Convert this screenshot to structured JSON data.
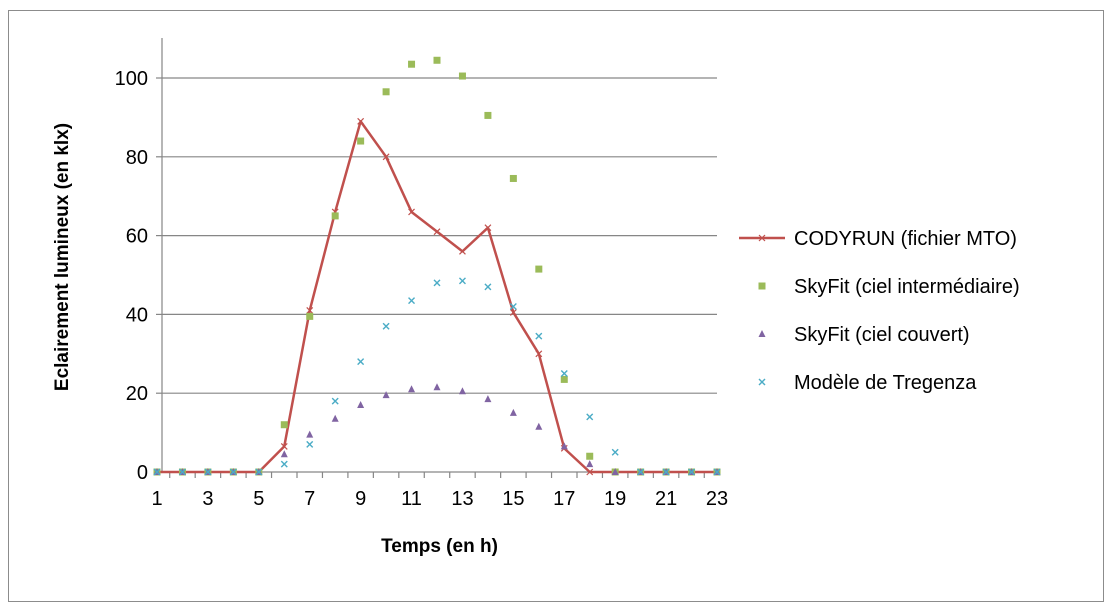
{
  "chart_data": {
    "type": "line",
    "xlabel": "Temps (en h)",
    "ylabel": "Eclairement lumineux (en klx)",
    "xlim": [
      1,
      23
    ],
    "ylim": [
      0,
      110
    ],
    "x_tick_labels": [
      "1",
      "3",
      "5",
      "7",
      "9",
      "11",
      "13",
      "15",
      "17",
      "19",
      "21",
      "23"
    ],
    "y_tick_labels": [
      "0",
      "20",
      "40",
      "60",
      "80",
      "100"
    ],
    "y_ticks": [
      0,
      20,
      40,
      60,
      80,
      100
    ],
    "grid": "horizontal",
    "legend_position": "right",
    "x": [
      1,
      2,
      3,
      4,
      5,
      6,
      7,
      8,
      9,
      10,
      11,
      12,
      13,
      14,
      15,
      16,
      17,
      18,
      19,
      20,
      21,
      22,
      23
    ],
    "series": [
      {
        "name": "CODYRUN (fichier MTO)",
        "style": "line",
        "color": "#c0504d",
        "values": [
          0,
          0,
          0,
          0,
          0,
          6.5,
          41,
          66,
          89,
          80,
          66,
          61,
          56,
          62,
          40.5,
          30,
          6,
          0,
          0,
          0,
          0,
          0,
          0
        ]
      },
      {
        "name": "SkyFit (ciel intermédiaire)",
        "style": "square",
        "color": "#9bbb59",
        "values": [
          0,
          0,
          0,
          0,
          0,
          12,
          39.5,
          65,
          84,
          96.5,
          103.5,
          104.5,
          100.5,
          90.5,
          74.5,
          51.5,
          23.5,
          4,
          0,
          0,
          0,
          0,
          0
        ]
      },
      {
        "name": "SkyFit (ciel couvert)",
        "style": "triangle",
        "color": "#8064a2",
        "values": [
          0,
          0,
          0,
          0,
          0,
          4.5,
          9.5,
          13.5,
          17,
          19.5,
          21,
          21.5,
          20.5,
          18.5,
          15,
          11.5,
          6.5,
          2,
          0,
          0,
          0,
          0,
          0
        ]
      },
      {
        "name": "Modèle de Tregenza",
        "style": "cross",
        "color": "#4bacc6",
        "values": [
          0,
          0,
          0,
          0,
          0,
          2,
          7,
          18,
          28,
          37,
          43.5,
          48,
          48.5,
          47,
          42,
          34.5,
          25,
          14,
          5,
          0,
          0,
          0,
          0
        ]
      }
    ]
  }
}
